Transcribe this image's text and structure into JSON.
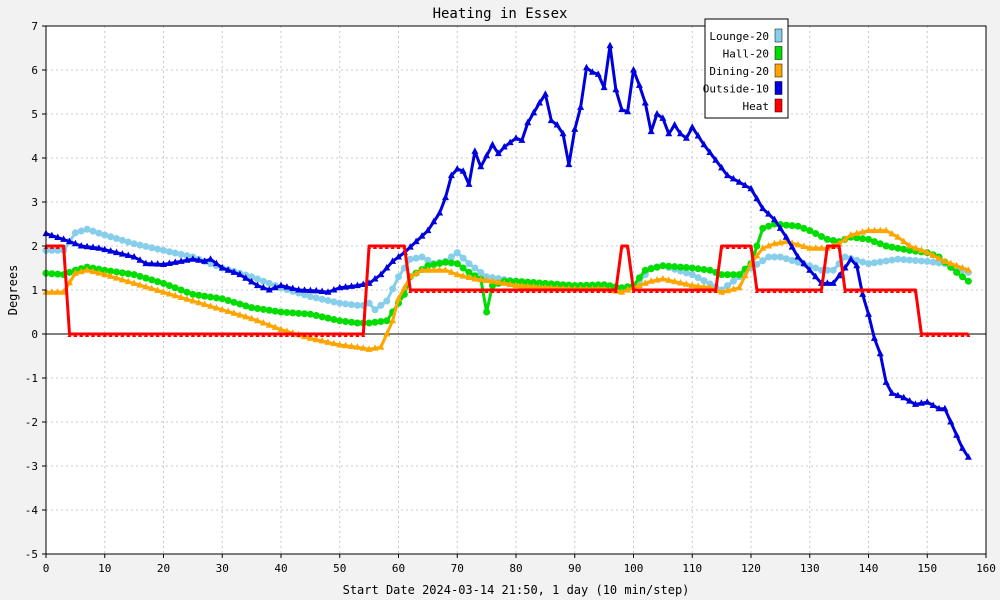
{
  "chart_data": {
    "type": "line",
    "title": "Heating in Essex",
    "xlabel": "Start Date 2024-03-14 21:50, 1 day (10 min/step)",
    "ylabel": "Degrees",
    "xlim": [
      0,
      160
    ],
    "ylim": [
      -5,
      7
    ],
    "x_ticks": [
      0,
      10,
      20,
      30,
      40,
      50,
      60,
      70,
      80,
      90,
      100,
      110,
      120,
      130,
      140,
      150,
      160
    ],
    "y_ticks": [
      -5,
      -4,
      -3,
      -2,
      -1,
      0,
      1,
      2,
      3,
      4,
      5,
      6,
      7
    ],
    "grid": true,
    "legend_position": "top-right",
    "series": [
      {
        "name": "Lounge-20",
        "color": "#87ceeb",
        "marker": "dot",
        "points": [
          [
            0,
            1.9
          ],
          [
            3,
            1.9
          ],
          [
            5,
            2.3
          ],
          [
            7,
            2.38
          ],
          [
            10,
            2.25
          ],
          [
            15,
            2.05
          ],
          [
            20,
            1.9
          ],
          [
            25,
            1.75
          ],
          [
            30,
            1.5
          ],
          [
            35,
            1.3
          ],
          [
            40,
            1.05
          ],
          [
            45,
            0.85
          ],
          [
            50,
            0.7
          ],
          [
            53,
            0.65
          ],
          [
            54,
            0.65
          ],
          [
            55,
            0.7
          ],
          [
            56,
            0.55
          ],
          [
            58,
            0.75
          ],
          [
            60,
            1.3
          ],
          [
            62,
            1.7
          ],
          [
            64,
            1.75
          ],
          [
            66,
            1.6
          ],
          [
            68,
            1.65
          ],
          [
            70,
            1.85
          ],
          [
            72,
            1.6
          ],
          [
            75,
            1.3
          ],
          [
            80,
            1.2
          ],
          [
            85,
            1.1
          ],
          [
            90,
            1.05
          ],
          [
            95,
            1.05
          ],
          [
            98,
            1.0
          ],
          [
            100,
            1.05
          ],
          [
            103,
            1.5
          ],
          [
            105,
            1.55
          ],
          [
            110,
            1.35
          ],
          [
            115,
            1.0
          ],
          [
            118,
            1.3
          ],
          [
            120,
            1.5
          ],
          [
            123,
            1.75
          ],
          [
            125,
            1.75
          ],
          [
            130,
            1.55
          ],
          [
            132,
            1.45
          ],
          [
            134,
            1.45
          ],
          [
            136,
            1.75
          ],
          [
            140,
            1.6
          ],
          [
            145,
            1.7
          ],
          [
            150,
            1.65
          ],
          [
            153,
            1.6
          ],
          [
            157,
            1.4
          ]
        ]
      },
      {
        "name": "Hall-20",
        "color": "#00dd00",
        "marker": "dot",
        "points": [
          [
            0,
            1.38
          ],
          [
            3,
            1.35
          ],
          [
            5,
            1.45
          ],
          [
            7,
            1.52
          ],
          [
            10,
            1.45
          ],
          [
            15,
            1.35
          ],
          [
            20,
            1.15
          ],
          [
            25,
            0.9
          ],
          [
            30,
            0.8
          ],
          [
            35,
            0.6
          ],
          [
            40,
            0.5
          ],
          [
            45,
            0.45
          ],
          [
            50,
            0.3
          ],
          [
            53,
            0.25
          ],
          [
            55,
            0.25
          ],
          [
            58,
            0.3
          ],
          [
            60,
            0.7
          ],
          [
            61,
            0.9
          ],
          [
            62,
            1.3
          ],
          [
            65,
            1.55
          ],
          [
            68,
            1.63
          ],
          [
            70,
            1.6
          ],
          [
            72,
            1.4
          ],
          [
            74,
            1.25
          ],
          [
            75,
            0.5
          ],
          [
            76,
            1.1
          ],
          [
            78,
            1.2
          ],
          [
            80,
            1.2
          ],
          [
            85,
            1.15
          ],
          [
            90,
            1.1
          ],
          [
            95,
            1.12
          ],
          [
            98,
            1.05
          ],
          [
            100,
            1.1
          ],
          [
            102,
            1.45
          ],
          [
            105,
            1.55
          ],
          [
            110,
            1.5
          ],
          [
            113,
            1.45
          ],
          [
            115,
            1.35
          ],
          [
            118,
            1.35
          ],
          [
            120,
            1.6
          ],
          [
            121,
            2.0
          ],
          [
            122,
            2.4
          ],
          [
            124,
            2.5
          ],
          [
            128,
            2.45
          ],
          [
            130,
            2.35
          ],
          [
            133,
            2.15
          ],
          [
            135,
            2.1
          ],
          [
            137,
            2.2
          ],
          [
            140,
            2.15
          ],
          [
            143,
            2.0
          ],
          [
            147,
            1.9
          ],
          [
            150,
            1.85
          ],
          [
            152,
            1.75
          ],
          [
            155,
            1.4
          ],
          [
            157,
            1.2
          ]
        ]
      },
      {
        "name": "Dining-20",
        "color": "#ffa500",
        "marker": "triangle",
        "points": [
          [
            0,
            0.95
          ],
          [
            3,
            0.95
          ],
          [
            5,
            1.38
          ],
          [
            7,
            1.45
          ],
          [
            10,
            1.35
          ],
          [
            15,
            1.15
          ],
          [
            20,
            0.95
          ],
          [
            25,
            0.75
          ],
          [
            30,
            0.55
          ],
          [
            35,
            0.35
          ],
          [
            40,
            0.1
          ],
          [
            45,
            -0.1
          ],
          [
            50,
            -0.25
          ],
          [
            53,
            -0.3
          ],
          [
            55,
            -0.35
          ],
          [
            57,
            -0.3
          ],
          [
            59,
            0.3
          ],
          [
            60,
            0.8
          ],
          [
            62,
            1.3
          ],
          [
            64,
            1.45
          ],
          [
            68,
            1.45
          ],
          [
            70,
            1.35
          ],
          [
            73,
            1.25
          ],
          [
            76,
            1.2
          ],
          [
            80,
            1.1
          ],
          [
            85,
            1.05
          ],
          [
            90,
            1.02
          ],
          [
            95,
            1.02
          ],
          [
            98,
            0.95
          ],
          [
            100,
            1.05
          ],
          [
            103,
            1.2
          ],
          [
            105,
            1.25
          ],
          [
            110,
            1.1
          ],
          [
            113,
            1.05
          ],
          [
            115,
            0.95
          ],
          [
            118,
            1.05
          ],
          [
            120,
            1.6
          ],
          [
            122,
            1.95
          ],
          [
            124,
            2.05
          ],
          [
            126,
            2.1
          ],
          [
            130,
            1.95
          ],
          [
            133,
            1.95
          ],
          [
            135,
            2.05
          ],
          [
            137,
            2.25
          ],
          [
            140,
            2.35
          ],
          [
            143,
            2.35
          ],
          [
            145,
            2.2
          ],
          [
            147,
            2.0
          ],
          [
            150,
            1.85
          ],
          [
            153,
            1.65
          ],
          [
            157,
            1.45
          ]
        ]
      },
      {
        "name": "Outside-10",
        "color": "#0000dd",
        "marker": "triangle",
        "points": [
          [
            0,
            2.28
          ],
          [
            3,
            2.15
          ],
          [
            6,
            2.0
          ],
          [
            9,
            1.95
          ],
          [
            12,
            1.85
          ],
          [
            15,
            1.75
          ],
          [
            17,
            1.6
          ],
          [
            20,
            1.58
          ],
          [
            23,
            1.65
          ],
          [
            25,
            1.7
          ],
          [
            27,
            1.65
          ],
          [
            28,
            1.7
          ],
          [
            30,
            1.5
          ],
          [
            33,
            1.35
          ],
          [
            36,
            1.1
          ],
          [
            38,
            1.0
          ],
          [
            40,
            1.1
          ],
          [
            43,
            1.0
          ],
          [
            46,
            0.98
          ],
          [
            48,
            0.95
          ],
          [
            50,
            1.05
          ],
          [
            53,
            1.1
          ],
          [
            55,
            1.15
          ],
          [
            57,
            1.35
          ],
          [
            59,
            1.65
          ],
          [
            61,
            1.85
          ],
          [
            63,
            2.1
          ],
          [
            65,
            2.35
          ],
          [
            67,
            2.75
          ],
          [
            68,
            3.1
          ],
          [
            69,
            3.6
          ],
          [
            70,
            3.75
          ],
          [
            71,
            3.7
          ],
          [
            72,
            3.4
          ],
          [
            73,
            4.15
          ],
          [
            74,
            3.8
          ],
          [
            75,
            4.05
          ],
          [
            76,
            4.3
          ],
          [
            77,
            4.1
          ],
          [
            78,
            4.25
          ],
          [
            80,
            4.45
          ],
          [
            81,
            4.4
          ],
          [
            82,
            4.8
          ],
          [
            84,
            5.25
          ],
          [
            85,
            5.45
          ],
          [
            86,
            4.85
          ],
          [
            87,
            4.75
          ],
          [
            88,
            4.55
          ],
          [
            89,
            3.85
          ],
          [
            90,
            4.65
          ],
          [
            91,
            5.15
          ],
          [
            92,
            6.05
          ],
          [
            93,
            5.95
          ],
          [
            94,
            5.9
          ],
          [
            95,
            5.6
          ],
          [
            96,
            6.55
          ],
          [
            97,
            5.55
          ],
          [
            98,
            5.1
          ],
          [
            99,
            5.05
          ],
          [
            100,
            6.0
          ],
          [
            101,
            5.65
          ],
          [
            102,
            5.25
          ],
          [
            103,
            4.6
          ],
          [
            104,
            5.0
          ],
          [
            105,
            4.9
          ],
          [
            106,
            4.55
          ],
          [
            107,
            4.75
          ],
          [
            108,
            4.55
          ],
          [
            109,
            4.45
          ],
          [
            110,
            4.7
          ],
          [
            112,
            4.3
          ],
          [
            114,
            3.95
          ],
          [
            116,
            3.6
          ],
          [
            118,
            3.45
          ],
          [
            120,
            3.3
          ],
          [
            122,
            2.85
          ],
          [
            124,
            2.6
          ],
          [
            126,
            2.2
          ],
          [
            128,
            1.75
          ],
          [
            130,
            1.45
          ],
          [
            132,
            1.15
          ],
          [
            134,
            1.15
          ],
          [
            136,
            1.5
          ],
          [
            137,
            1.7
          ],
          [
            138,
            1.55
          ],
          [
            139,
            0.9
          ],
          [
            140,
            0.45
          ],
          [
            141,
            -0.1
          ],
          [
            142,
            -0.45
          ],
          [
            143,
            -1.1
          ],
          [
            144,
            -1.35
          ],
          [
            146,
            -1.45
          ],
          [
            148,
            -1.6
          ],
          [
            150,
            -1.55
          ],
          [
            152,
            -1.7
          ],
          [
            153,
            -1.7
          ],
          [
            154,
            -2.0
          ],
          [
            155,
            -2.3
          ],
          [
            156,
            -2.6
          ],
          [
            157,
            -2.8
          ]
        ]
      },
      {
        "name": "Heat",
        "color": "#ff0000",
        "marker": "tick",
        "points": [
          [
            0,
            2.0
          ],
          [
            3,
            2.0
          ],
          [
            4,
            0.0
          ],
          [
            54,
            0.0
          ],
          [
            55,
            2.0
          ],
          [
            61,
            2.0
          ],
          [
            62,
            1.0
          ],
          [
            97,
            1.0
          ],
          [
            98,
            2.0
          ],
          [
            99,
            2.0
          ],
          [
            100,
            1.0
          ],
          [
            114,
            1.0
          ],
          [
            115,
            2.0
          ],
          [
            120,
            2.0
          ],
          [
            121,
            1.0
          ],
          [
            132,
            1.0
          ],
          [
            133,
            2.0
          ],
          [
            135,
            2.0
          ],
          [
            136,
            1.0
          ],
          [
            148,
            1.0
          ],
          [
            149,
            0.0
          ],
          [
            157,
            0.0
          ]
        ]
      }
    ]
  }
}
